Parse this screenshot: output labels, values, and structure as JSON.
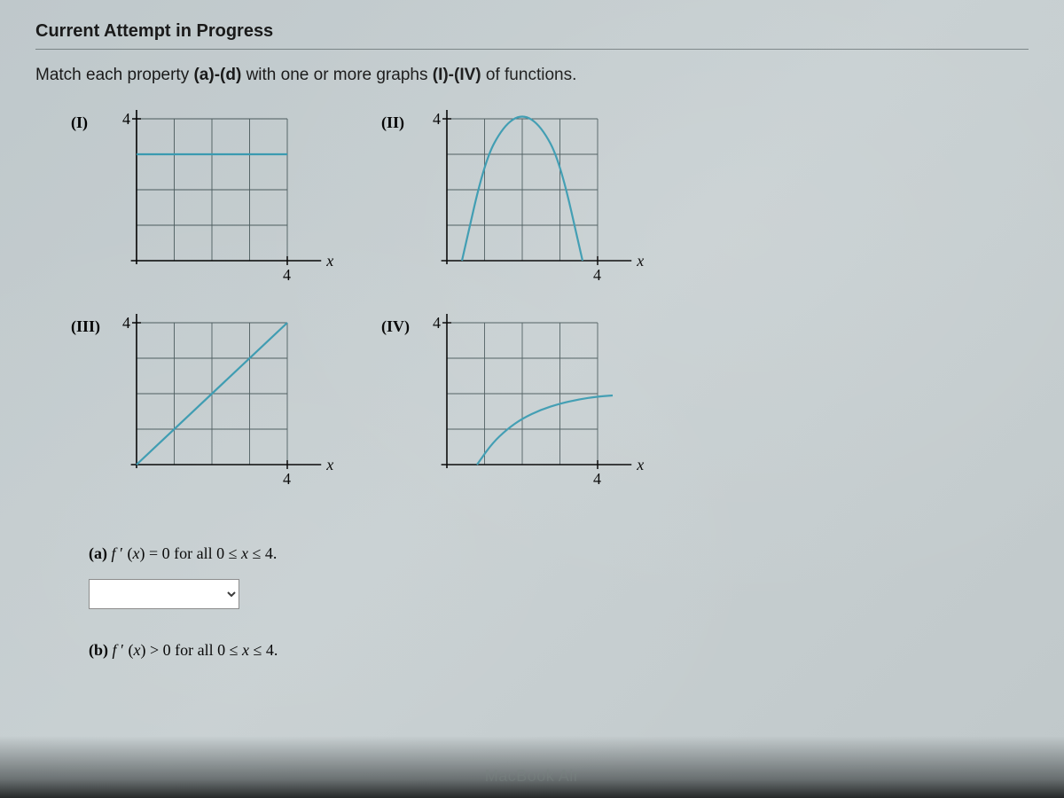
{
  "header": {
    "title": "Current Attempt in Progress"
  },
  "instructions": {
    "prefix": "Match each property ",
    "bold1": "(a)-(d)",
    "mid": " with one or more graphs ",
    "bold2": "(I)-(IV)",
    "suffix": " of functions."
  },
  "graphs": {
    "I": {
      "label": "(I)",
      "type": "line",
      "grid_color": "#4a5a5c",
      "axis_color": "#000000",
      "curve_color": "#3a9ab0",
      "background": "#cfd5d6",
      "y_tick_label": "4",
      "x_tick_label": "4",
      "x_axis_label": "x",
      "xlim": [
        0,
        4.5
      ],
      "ylim": [
        0,
        4.5
      ],
      "grid_step": 1,
      "curve_points": [
        [
          0,
          3
        ],
        [
          4,
          3
        ]
      ]
    },
    "II": {
      "label": "(II)",
      "type": "parabola",
      "grid_color": "#4a5a5c",
      "axis_color": "#000000",
      "curve_color": "#3a9ab0",
      "background": "#cfd5d6",
      "y_tick_label": "4",
      "x_tick_label": "4",
      "x_axis_label": "x",
      "xlim": [
        0,
        4.5
      ],
      "ylim": [
        0,
        4.5
      ],
      "grid_step": 1,
      "curve_points": [
        [
          0.4,
          0
        ],
        [
          1,
          2.8
        ],
        [
          1.5,
          3.8
        ],
        [
          2,
          4.15
        ],
        [
          2.5,
          3.8
        ],
        [
          3,
          2.8
        ],
        [
          3.6,
          0
        ]
      ]
    },
    "III": {
      "label": "(III)",
      "type": "line",
      "grid_color": "#4a5a5c",
      "axis_color": "#000000",
      "curve_color": "#3a9ab0",
      "background": "#cfd5d6",
      "y_tick_label": "4",
      "x_tick_label": "4",
      "x_axis_label": "x",
      "xlim": [
        0,
        4.5
      ],
      "ylim": [
        0,
        4.5
      ],
      "grid_step": 1,
      "curve_points": [
        [
          0,
          0
        ],
        [
          4,
          4
        ]
      ]
    },
    "IV": {
      "label": "(IV)",
      "type": "sqrt-like",
      "grid_color": "#4a5a5c",
      "axis_color": "#000000",
      "curve_color": "#3a9ab0",
      "background": "#cfd5d6",
      "y_tick_label": "4",
      "x_tick_label": "4",
      "x_axis_label": "x",
      "xlim": [
        0,
        4.5
      ],
      "ylim": [
        0,
        4.5
      ],
      "grid_step": 1,
      "curve_points": [
        [
          0.8,
          0
        ],
        [
          1.2,
          0.6
        ],
        [
          1.6,
          1.0
        ],
        [
          2.0,
          1.3
        ],
        [
          2.5,
          1.55
        ],
        [
          3.0,
          1.72
        ],
        [
          3.5,
          1.84
        ],
        [
          4.0,
          1.92
        ],
        [
          4.4,
          1.95
        ]
      ]
    }
  },
  "questions": {
    "a": {
      "label": "(a)",
      "text_html": "f ′ (x) = 0 for all 0 ≤ x ≤ 4.",
      "dropdown_value": ""
    },
    "b": {
      "label": "(b)",
      "text_html": "f ′ (x) > 0 for all 0 ≤ x ≤ 4."
    }
  },
  "device": {
    "label": "MacBook Air"
  }
}
